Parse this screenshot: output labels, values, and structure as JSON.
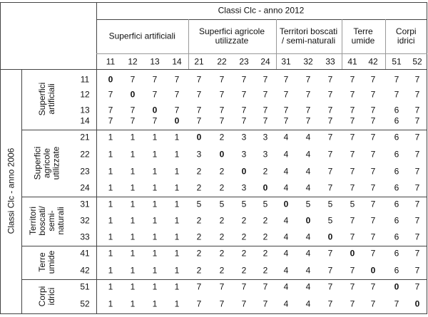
{
  "header": {
    "col_title": "Classi Clc - anno 2012",
    "row_title": "Classi Clc - anno 2006"
  },
  "col_groups": [
    {
      "label": "Superfici artificiali",
      "codes": [
        "11",
        "12",
        "13",
        "14"
      ]
    },
    {
      "label": "Superfici agricole utilizzate",
      "codes": [
        "21",
        "22",
        "23",
        "24"
      ]
    },
    {
      "label": "Territori boscati / semi-naturali",
      "codes": [
        "31",
        "32",
        "33"
      ]
    },
    {
      "label": "Terre umide",
      "codes": [
        "41",
        "42"
      ]
    },
    {
      "label": "Corpi idrici",
      "codes": [
        "51",
        "52"
      ]
    }
  ],
  "row_groups": [
    {
      "label": "Superfici\nartificiali",
      "codes": [
        "11",
        "12",
        "13",
        "14"
      ]
    },
    {
      "label": "Superfici\nagricole\nutilizzate",
      "codes": [
        "21",
        "22",
        "23",
        "24"
      ]
    },
    {
      "label": "Territori\nboscati/\nsemi-\nnaturali",
      "codes": [
        "31",
        "32",
        "33"
      ]
    },
    {
      "label": "Terre\numide",
      "codes": [
        "41",
        "42"
      ]
    },
    {
      "label": "Corpi\nidrici",
      "codes": [
        "51",
        "52"
      ]
    }
  ],
  "rows": [
    [
      0,
      7,
      7,
      7,
      7,
      7,
      7,
      7,
      7,
      7,
      7,
      7,
      7,
      7,
      7
    ],
    [
      7,
      0,
      7,
      7,
      7,
      7,
      7,
      7,
      7,
      7,
      7,
      7,
      7,
      7,
      7
    ],
    [
      7,
      7,
      0,
      7,
      7,
      7,
      7,
      7,
      7,
      7,
      7,
      7,
      7,
      6,
      7
    ],
    [
      7,
      7,
      7,
      0,
      7,
      7,
      7,
      7,
      7,
      7,
      7,
      7,
      7,
      6,
      7
    ],
    [
      1,
      1,
      1,
      1,
      0,
      2,
      3,
      3,
      4,
      4,
      7,
      7,
      7,
      6,
      7
    ],
    [
      1,
      1,
      1,
      1,
      3,
      0,
      3,
      3,
      4,
      4,
      7,
      7,
      7,
      6,
      7
    ],
    [
      1,
      1,
      1,
      1,
      2,
      2,
      0,
      2,
      4,
      4,
      7,
      7,
      7,
      6,
      7
    ],
    [
      1,
      1,
      1,
      1,
      2,
      2,
      3,
      0,
      4,
      4,
      7,
      7,
      7,
      6,
      7
    ],
    [
      1,
      1,
      1,
      1,
      5,
      5,
      5,
      5,
      0,
      5,
      5,
      5,
      7,
      6,
      7
    ],
    [
      1,
      1,
      1,
      1,
      2,
      2,
      2,
      2,
      4,
      0,
      5,
      7,
      7,
      6,
      7
    ],
    [
      1,
      1,
      1,
      1,
      2,
      2,
      2,
      2,
      4,
      4,
      0,
      7,
      7,
      6,
      7
    ],
    [
      1,
      1,
      1,
      1,
      2,
      2,
      2,
      2,
      4,
      4,
      7,
      0,
      7,
      6,
      7
    ],
    [
      1,
      1,
      1,
      1,
      2,
      2,
      2,
      2,
      4,
      4,
      7,
      7,
      0,
      6,
      7
    ],
    [
      1,
      1,
      1,
      1,
      7,
      7,
      7,
      7,
      4,
      4,
      7,
      7,
      7,
      0,
      7
    ],
    [
      1,
      1,
      1,
      1,
      7,
      7,
      7,
      7,
      4,
      4,
      7,
      7,
      7,
      7,
      0
    ]
  ]
}
